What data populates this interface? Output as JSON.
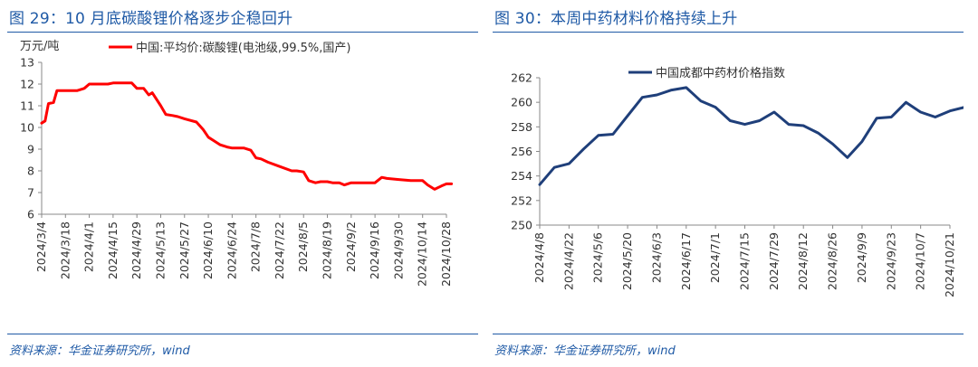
{
  "charts": [
    {
      "id": "left",
      "figure_title": "图 29：10 月底碳酸锂价格逐步企稳回升",
      "source": "资料来源：华金证券研究所，wind",
      "color": "#ff0000",
      "chart_data": {
        "type": "line",
        "ylabel": "万元/吨",
        "ylim": [
          6,
          13
        ],
        "yticks": [
          "6",
          "7",
          "8",
          "9",
          "10",
          "11",
          "12",
          "13"
        ],
        "x_tick_labels": [
          "2024/3/4",
          "2024/3/18",
          "2024/4/1",
          "2024/4/15",
          "2024/4/29",
          "2024/5/13",
          "2024/5/27",
          "2024/6/10",
          "2024/6/24",
          "2024/7/8",
          "2024/7/22",
          "2024/8/5",
          "2024/8/19",
          "2024/9/2",
          "2024/9/16",
          "2024/9/30",
          "2024/10/14",
          "2024/10/28"
        ],
        "legend_position": "top",
        "grid": false,
        "series": [
          {
            "name": "中国:平均价:碳酸锂(电池级,99.5%,国产)",
            "points": [
              [
                "2024/3/4",
                10.2
              ],
              [
                "2024/3/6",
                10.3
              ],
              [
                "2024/3/8",
                11.1
              ],
              [
                "2024/3/11",
                11.15
              ],
              [
                "2024/3/13",
                11.7
              ],
              [
                "2024/3/18",
                11.7
              ],
              [
                "2024/3/25",
                11.7
              ],
              [
                "2024/3/29",
                11.8
              ],
              [
                "2024/4/1",
                12.0
              ],
              [
                "2024/4/8",
                12.0
              ],
              [
                "2024/4/12",
                12.0
              ],
              [
                "2024/4/15",
                12.05
              ],
              [
                "2024/4/22",
                12.05
              ],
              [
                "2024/4/26",
                12.05
              ],
              [
                "2024/4/29",
                11.8
              ],
              [
                "2024/5/3",
                11.8
              ],
              [
                "2024/5/6",
                11.5
              ],
              [
                "2024/5/8",
                11.6
              ],
              [
                "2024/5/13",
                11.0
              ],
              [
                "2024/5/16",
                10.6
              ],
              [
                "2024/5/20",
                10.55
              ],
              [
                "2024/5/23",
                10.5
              ],
              [
                "2024/5/27",
                10.4
              ],
              [
                "2024/6/3",
                10.25
              ],
              [
                "2024/6/7",
                9.9
              ],
              [
                "2024/6/10",
                9.55
              ],
              [
                "2024/6/14",
                9.35
              ],
              [
                "2024/6/17",
                9.2
              ],
              [
                "2024/6/21",
                9.1
              ],
              [
                "2024/6/24",
                9.05
              ],
              [
                "2024/7/1",
                9.05
              ],
              [
                "2024/7/5",
                8.95
              ],
              [
                "2024/7/8",
                8.6
              ],
              [
                "2024/7/11",
                8.55
              ],
              [
                "2024/7/15",
                8.4
              ],
              [
                "2024/7/22",
                8.2
              ],
              [
                "2024/7/29",
                8.0
              ],
              [
                "2024/8/1",
                8.0
              ],
              [
                "2024/8/5",
                7.95
              ],
              [
                "2024/8/8",
                7.55
              ],
              [
                "2024/8/12",
                7.45
              ],
              [
                "2024/8/15",
                7.5
              ],
              [
                "2024/8/19",
                7.5
              ],
              [
                "2024/8/22",
                7.45
              ],
              [
                "2024/8/26",
                7.45
              ],
              [
                "2024/8/29",
                7.35
              ],
              [
                "2024/9/2",
                7.45
              ],
              [
                "2024/9/9",
                7.45
              ],
              [
                "2024/9/16",
                7.45
              ],
              [
                "2024/9/20",
                7.7
              ],
              [
                "2024/9/23",
                7.65
              ],
              [
                "2024/9/30",
                7.6
              ],
              [
                "2024/10/7",
                7.55
              ],
              [
                "2024/10/14",
                7.55
              ],
              [
                "2024/10/17",
                7.35
              ],
              [
                "2024/10/21",
                7.15
              ],
              [
                "2024/10/25",
                7.3
              ],
              [
                "2024/10/28",
                7.4
              ],
              [
                "2024/10/31",
                7.4
              ]
            ]
          }
        ]
      }
    },
    {
      "id": "right",
      "figure_title": "图 30：本周中药材料价格持续上升",
      "source": "资料来源：华金证券研究所，wind",
      "color": "#1f3f7a",
      "chart_data": {
        "type": "line",
        "ylabel": "",
        "ylim": [
          250,
          262
        ],
        "yticks": [
          "250",
          "252",
          "254",
          "256",
          "258",
          "260",
          "262"
        ],
        "x_tick_labels": [
          "2024/4/8",
          "2024/4/22",
          "2024/5/6",
          "2024/5/20",
          "2024/6/3",
          "2024/6/17",
          "2024/7/1",
          "2024/7/15",
          "2024/7/29",
          "2024/8/12",
          "2024/8/26",
          "2024/9/9",
          "2024/9/23",
          "2024/10/7",
          "2024/10/21"
        ],
        "legend_position": "top",
        "grid": false,
        "series": [
          {
            "name": "中国成都中药材价格指数",
            "points": [
              [
                "2024/4/8",
                253.3
              ],
              [
                "2024/4/15",
                254.7
              ],
              [
                "2024/4/22",
                255.0
              ],
              [
                "2024/4/29",
                256.2
              ],
              [
                "2024/5/6",
                257.3
              ],
              [
                "2024/5/13",
                257.4
              ],
              [
                "2024/5/20",
                258.9
              ],
              [
                "2024/5/27",
                260.4
              ],
              [
                "2024/6/3",
                260.6
              ],
              [
                "2024/6/10",
                261.0
              ],
              [
                "2024/6/17",
                261.2
              ],
              [
                "2024/6/24",
                260.1
              ],
              [
                "2024/7/1",
                259.6
              ],
              [
                "2024/7/8",
                258.5
              ],
              [
                "2024/7/15",
                258.2
              ],
              [
                "2024/7/22",
                258.5
              ],
              [
                "2024/7/29",
                259.2
              ],
              [
                "2024/8/5",
                258.2
              ],
              [
                "2024/8/12",
                258.1
              ],
              [
                "2024/8/19",
                257.5
              ],
              [
                "2024/8/26",
                256.6
              ],
              [
                "2024/9/2",
                255.5
              ],
              [
                "2024/9/9",
                256.8
              ],
              [
                "2024/9/16",
                258.7
              ],
              [
                "2024/9/23",
                258.8
              ],
              [
                "2024/9/30",
                260.0
              ],
              [
                "2024/10/7",
                259.2
              ],
              [
                "2024/10/14",
                258.8
              ],
              [
                "2024/10/21",
                259.3
              ],
              [
                "2024/10/28",
                259.6
              ]
            ]
          }
        ]
      }
    }
  ]
}
